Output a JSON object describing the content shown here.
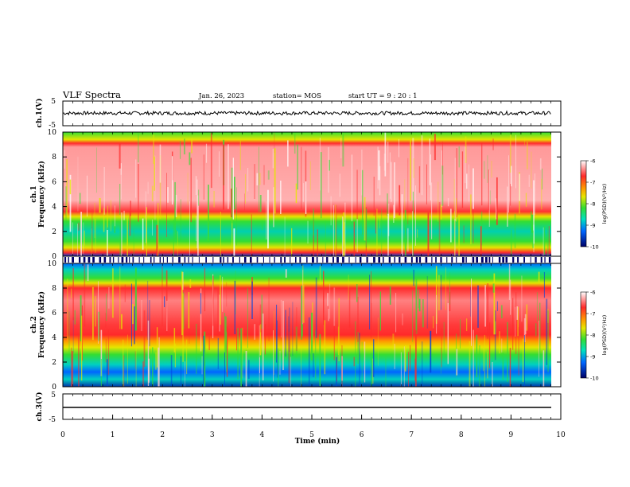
{
  "header": {
    "title": "VLF Spectra",
    "date": "Jan. 26, 2023",
    "station": "station= MOS",
    "start_ut": "start  UT  =   9 : 20 : 1"
  },
  "colorbar": {
    "label": "log(PSD)(V²/Hz)",
    "ticks": [
      "-6",
      "-7",
      "-8",
      "-9",
      "-10"
    ],
    "colors": [
      "#ffffff",
      "#ff2a2a",
      "#ff9900",
      "#e6e600",
      "#33dd33",
      "#00e0c0",
      "#0066ff",
      "#000066"
    ]
  },
  "chart_data": [
    {
      "type": "line",
      "title": "",
      "ylabel": "ch.1(V)",
      "ylim": [
        -5,
        5
      ],
      "y_ticks": [
        "5",
        "-5"
      ],
      "series": [
        {
          "values_description": "noise trace near 0 V",
          "mean": 0.1
        }
      ]
    },
    {
      "type": "heatmap",
      "ylabel": "ch.1\nFrequency (kHz)",
      "ylabel_lines": [
        "ch.1",
        "Frequency (kHz)"
      ],
      "ylim": [
        0,
        10
      ],
      "y_ticks": [
        "0",
        "2",
        "4",
        "6",
        "8",
        "10"
      ],
      "xlim": [
        0,
        9.8
      ],
      "color_scale_range": [
        -10,
        -6
      ],
      "bands_khz": [
        {
          "from": 0,
          "to": 0.4,
          "level": "high"
        },
        {
          "from": 0.4,
          "to": 3.2,
          "level": "low"
        },
        {
          "from": 3.2,
          "to": 9.0,
          "level": "high"
        },
        {
          "from": 9.0,
          "to": 10,
          "level": "medium"
        }
      ]
    },
    {
      "type": "heatmap",
      "ylabel": "ch.2\nFrequency (kHz)",
      "ylabel_lines": [
        "ch.2",
        "Frequency (kHz)"
      ],
      "ylim": [
        0,
        10
      ],
      "y_ticks": [
        "0",
        "2",
        "4",
        "6",
        "8",
        "10"
      ],
      "xlim": [
        0,
        9.8
      ],
      "color_scale_range": [
        -10,
        -6
      ],
      "bands_khz": [
        {
          "from": 0,
          "to": 2.5,
          "level": "very-low"
        },
        {
          "from": 2.5,
          "to": 4.2,
          "level": "low"
        },
        {
          "from": 4.2,
          "to": 8.2,
          "level": "high"
        },
        {
          "from": 8.2,
          "to": 10,
          "level": "low"
        }
      ]
    },
    {
      "type": "line",
      "ylabel": "ch.3(V)",
      "ylim": [
        -5,
        5
      ],
      "y_ticks": [
        "5",
        "-5"
      ],
      "series": [
        {
          "values_description": "flat line",
          "mean": -1.5
        }
      ]
    }
  ],
  "xaxis": {
    "label": "Time  (min)",
    "range": [
      0,
      10
    ],
    "ticks": [
      "0",
      "1",
      "2",
      "3",
      "4",
      "5",
      "6",
      "7",
      "8",
      "9",
      "10"
    ]
  }
}
